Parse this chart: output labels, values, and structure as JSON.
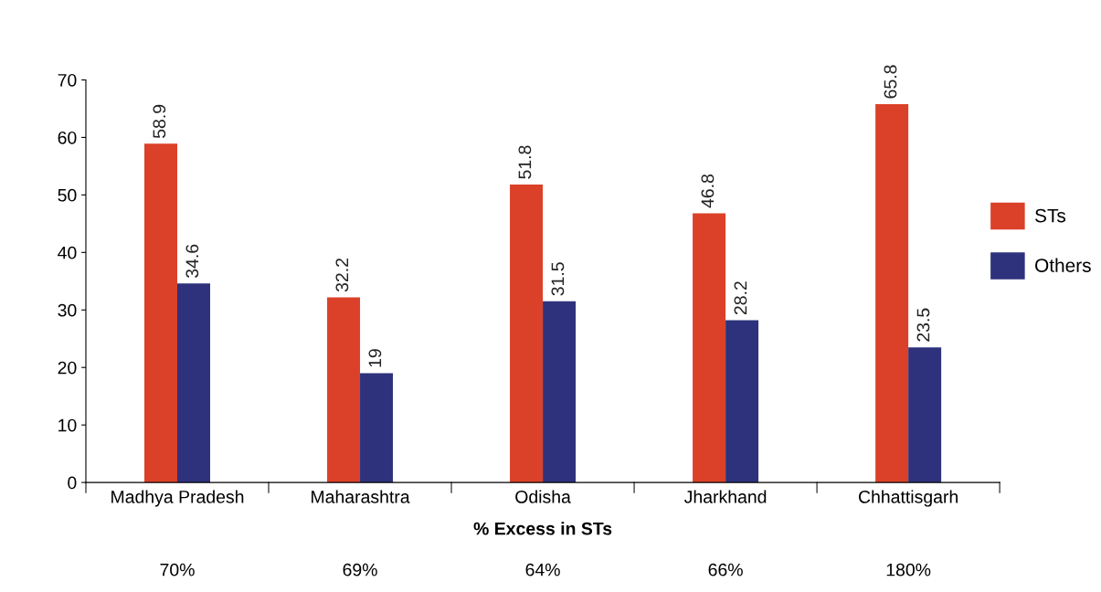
{
  "chart_data": {
    "type": "bar",
    "categories": [
      "Madhya Pradesh",
      "Maharashtra",
      "Odisha",
      "Jharkhand",
      "Chhattisgarh"
    ],
    "series": [
      {
        "name": "STs",
        "color": "#db4128",
        "values": [
          58.9,
          32.2,
          51.8,
          46.8,
          65.8
        ]
      },
      {
        "name": "Others",
        "color": "#2e327c",
        "values": [
          34.6,
          19,
          31.5,
          28.2,
          23.5
        ]
      }
    ],
    "xlabel": "% Excess in STs",
    "annotations": [
      "70%",
      "69%",
      "64%",
      "66%",
      "180%"
    ],
    "ylim": [
      0,
      70
    ],
    "yticks": [
      0,
      10,
      20,
      30,
      40,
      50,
      60,
      70
    ],
    "data_labels": true,
    "grid": false,
    "legend": "right"
  }
}
